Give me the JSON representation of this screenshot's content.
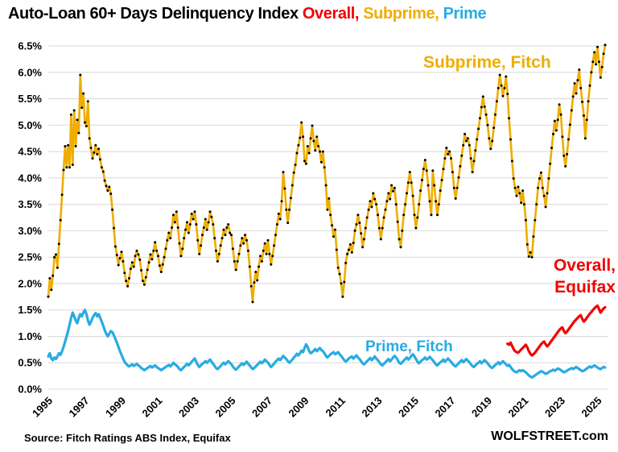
{
  "title": {
    "main": "Auto-Loan 60+ Days Delinquency Index",
    "overall_word": "Overall,",
    "subprime_word": "Subprime,",
    "prime_word": "Prime"
  },
  "footer": {
    "source": "Source: Fitch Ratings ABS Index, Equifax",
    "brand": "WOLFSTREET.com"
  },
  "annotations": {
    "subprime": "Subprime, Fitch",
    "overall_line1": "Overall,",
    "overall_line2": "Equifax",
    "prime": "Prime, Fitch"
  },
  "colors": {
    "subprime": "#EFAD00",
    "prime": "#29ABE2",
    "overall": "#F20000",
    "grid": "#D8D8D8",
    "dot": "#000000",
    "title_text": "#000000"
  },
  "chart_data": {
    "type": "line",
    "title": "Auto-Loan 60+ Days Delinquency Index Overall, Subprime, Prime",
    "xlabel": "",
    "ylabel": "",
    "grid": "horizontal-only",
    "ylim": [
      0,
      6.65
    ],
    "ytick_step": 0.5,
    "ytick_labels": [
      "0.0%",
      "0.5%",
      "1.0%",
      "1.5%",
      "2.0%",
      "2.5%",
      "3.0%",
      "3.5%",
      "4.0%",
      "4.5%",
      "5.0%",
      "5.5%",
      "6.0%",
      "6.5%"
    ],
    "xticks_years": [
      1995,
      1997,
      1999,
      2001,
      2003,
      2005,
      2007,
      2009,
      2011,
      2013,
      2015,
      2017,
      2019,
      2021,
      2023,
      2025
    ],
    "x_start": "1995-01",
    "x_end": "2025-06",
    "x_months_total": 366,
    "series": [
      {
        "id": "subprime",
        "name": "Subprime, Fitch",
        "color": "#EFAD00",
        "width": 2.6,
        "dots": true,
        "start_month_index": 0,
        "values": [
          1.75,
          2.1,
          1.88,
          2.15,
          2.5,
          2.55,
          2.3,
          2.75,
          3.2,
          3.68,
          4.15,
          4.6,
          4.2,
          4.62,
          4.2,
          5.2,
          4.25,
          5.28,
          4.6,
          5.1,
          4.85,
          5.95,
          5.33,
          5.6,
          5.05,
          4.98,
          5.45,
          4.75,
          4.57,
          4.37,
          4.48,
          4.62,
          4.45,
          4.55,
          4.35,
          4.2,
          4.12,
          3.95,
          3.85,
          3.76,
          3.83,
          3.7,
          3.4,
          3.05,
          2.7,
          2.54,
          2.35,
          2.48,
          2.6,
          2.42,
          2.2,
          2.05,
          1.95,
          2.1,
          2.28,
          2.4,
          2.32,
          2.52,
          2.62,
          2.55,
          2.45,
          2.25,
          2.05,
          1.98,
          2.12,
          2.26,
          2.4,
          2.55,
          2.46,
          2.62,
          2.78,
          2.62,
          2.52,
          2.34,
          2.22,
          2.36,
          2.5,
          2.66,
          2.82,
          2.96,
          2.86,
          3.06,
          3.3,
          3.16,
          3.36,
          3.06,
          2.76,
          2.52,
          2.66,
          2.86,
          3.02,
          3.16,
          2.96,
          3.12,
          3.32,
          3.22,
          3.36,
          3.12,
          2.82,
          2.56,
          2.72,
          2.92,
          3.06,
          3.22,
          3.02,
          3.16,
          3.36,
          3.26,
          3.12,
          2.86,
          2.62,
          2.42,
          2.56,
          2.72,
          2.86,
          3.02,
          2.92,
          3.06,
          3.12,
          2.96,
          2.92,
          2.66,
          2.42,
          2.26,
          2.42,
          2.56,
          2.72,
          2.86,
          2.76,
          2.92,
          2.82,
          2.62,
          2.32,
          1.95,
          1.65,
          2.02,
          2.22,
          2.06,
          2.32,
          2.52,
          2.42,
          2.62,
          2.76,
          2.56,
          2.82,
          2.56,
          2.36,
          2.52,
          2.72,
          2.92,
          3.12,
          3.32,
          3.22,
          3.56,
          4.11,
          3.8,
          3.4,
          3.15,
          3.4,
          3.62,
          3.86,
          4.1,
          4.25,
          4.47,
          4.62,
          4.76,
          5.05,
          4.78,
          4.32,
          4.27,
          4.6,
          4.47,
          4.75,
          4.99,
          4.7,
          4.52,
          4.78,
          4.6,
          4.5,
          4.3,
          4.5,
          4.2,
          3.86,
          3.4,
          3.61,
          3.3,
          3.1,
          2.89,
          3.02,
          2.64,
          2.3,
          2.18,
          2.0,
          1.75,
          2.03,
          2.39,
          2.56,
          2.64,
          2.74,
          2.59,
          2.77,
          3.0,
          3.12,
          3.3,
          3.15,
          2.95,
          2.69,
          2.84,
          3.05,
          3.25,
          3.4,
          3.56,
          3.45,
          3.71,
          3.6,
          3.5,
          3.3,
          3.05,
          2.84,
          3.05,
          3.25,
          3.4,
          3.56,
          3.71,
          3.6,
          3.86,
          3.75,
          3.81,
          3.5,
          3.17,
          2.84,
          2.69,
          3.0,
          3.3,
          3.5,
          3.71,
          3.91,
          4.11,
          3.91,
          3.66,
          3.3,
          3.05,
          3.25,
          3.5,
          3.76,
          3.96,
          4.17,
          4.34,
          4.14,
          3.86,
          3.56,
          3.3,
          4.14,
          3.86,
          3.56,
          3.3,
          3.5,
          3.76,
          3.96,
          4.17,
          4.37,
          4.57,
          4.45,
          4.5,
          4.37,
          4.11,
          3.81,
          3.61,
          3.81,
          4.01,
          4.22,
          4.42,
          4.62,
          4.83,
          4.7,
          4.75,
          4.62,
          4.37,
          4.11,
          4.32,
          4.52,
          4.73,
          4.93,
          5.13,
          5.34,
          5.54,
          5.35,
          5.2,
          5.0,
          4.75,
          4.55,
          4.7,
          4.95,
          5.2,
          5.45,
          5.7,
          5.95,
          5.75,
          5.55,
          5.7,
          5.92,
          5.59,
          5.13,
          4.73,
          4.32,
          3.99,
          3.81,
          3.66,
          3.83,
          3.71,
          3.53,
          3.76,
          3.5,
          3.2,
          2.74,
          2.51,
          2.59,
          2.5,
          2.89,
          3.2,
          3.5,
          3.81,
          3.99,
          4.1,
          3.81,
          3.66,
          3.45,
          3.71,
          3.99,
          4.27,
          4.57,
          4.83,
          5.08,
          4.9,
          5.1,
          5.39,
          5.2,
          4.78,
          4.42,
          4.22,
          4.45,
          4.73,
          5.01,
          5.28,
          5.54,
          5.79,
          5.6,
          5.85,
          6.05,
          5.7,
          5.44,
          5.18,
          4.75,
          5.1,
          5.45,
          5.75,
          6.0,
          6.2,
          6.38,
          6.15,
          6.48,
          6.2,
          5.9,
          6.1,
          6.35,
          6.52
        ]
      },
      {
        "id": "prime",
        "name": "Prime, Fitch",
        "color": "#29ABE2",
        "width": 3.2,
        "dots": false,
        "start_month_index": 0,
        "values": [
          0.62,
          0.68,
          0.58,
          0.55,
          0.6,
          0.57,
          0.62,
          0.68,
          0.65,
          0.72,
          0.8,
          0.9,
          1.0,
          1.1,
          1.22,
          1.35,
          1.45,
          1.38,
          1.3,
          1.25,
          1.35,
          1.42,
          1.38,
          1.45,
          1.5,
          1.42,
          1.3,
          1.22,
          1.28,
          1.35,
          1.4,
          1.44,
          1.38,
          1.42,
          1.35,
          1.28,
          1.2,
          1.12,
          1.05,
          1.0,
          1.05,
          1.1,
          1.08,
          1.02,
          0.95,
          0.88,
          0.8,
          0.72,
          0.65,
          0.58,
          0.52,
          0.48,
          0.45,
          0.43,
          0.45,
          0.47,
          0.44,
          0.46,
          0.48,
          0.45,
          0.43,
          0.4,
          0.38,
          0.36,
          0.38,
          0.4,
          0.42,
          0.44,
          0.41,
          0.43,
          0.45,
          0.42,
          0.4,
          0.38,
          0.36,
          0.38,
          0.4,
          0.42,
          0.44,
          0.46,
          0.43,
          0.46,
          0.5,
          0.47,
          0.45,
          0.42,
          0.38,
          0.36,
          0.39,
          0.42,
          0.45,
          0.48,
          0.45,
          0.48,
          0.52,
          0.55,
          0.58,
          0.52,
          0.46,
          0.42,
          0.45,
          0.48,
          0.5,
          0.53,
          0.5,
          0.53,
          0.56,
          0.52,
          0.48,
          0.44,
          0.4,
          0.38,
          0.41,
          0.44,
          0.47,
          0.5,
          0.47,
          0.5,
          0.53,
          0.5,
          0.47,
          0.43,
          0.39,
          0.37,
          0.4,
          0.43,
          0.46,
          0.49,
          0.46,
          0.49,
          0.52,
          0.48,
          0.45,
          0.41,
          0.38,
          0.4,
          0.43,
          0.46,
          0.49,
          0.52,
          0.49,
          0.52,
          0.56,
          0.53,
          0.5,
          0.46,
          0.42,
          0.45,
          0.48,
          0.52,
          0.55,
          0.58,
          0.55,
          0.59,
          0.63,
          0.6,
          0.57,
          0.53,
          0.5,
          0.53,
          0.56,
          0.6,
          0.63,
          0.67,
          0.64,
          0.68,
          0.73,
          0.7,
          0.78,
          0.85,
          0.8,
          0.72,
          0.68,
          0.7,
          0.73,
          0.76,
          0.72,
          0.75,
          0.78,
          0.74,
          0.72,
          0.68,
          0.63,
          0.6,
          0.63,
          0.66,
          0.68,
          0.7,
          0.66,
          0.68,
          0.7,
          0.66,
          0.63,
          0.59,
          0.55,
          0.52,
          0.55,
          0.58,
          0.6,
          0.62,
          0.58,
          0.61,
          0.64,
          0.6,
          0.57,
          0.53,
          0.49,
          0.47,
          0.5,
          0.53,
          0.56,
          0.59,
          0.55,
          0.58,
          0.62,
          0.58,
          0.55,
          0.51,
          0.47,
          0.45,
          0.48,
          0.51,
          0.54,
          0.57,
          0.53,
          0.56,
          0.6,
          0.63,
          0.6,
          0.55,
          0.5,
          0.48,
          0.51,
          0.54,
          0.57,
          0.6,
          0.56,
          0.59,
          0.63,
          0.66,
          0.62,
          0.57,
          0.52,
          0.49,
          0.52,
          0.55,
          0.57,
          0.6,
          0.56,
          0.58,
          0.61,
          0.58,
          0.55,
          0.51,
          0.47,
          0.45,
          0.48,
          0.51,
          0.53,
          0.56,
          0.52,
          0.55,
          0.58,
          0.55,
          0.52,
          0.48,
          0.45,
          0.43,
          0.46,
          0.49,
          0.52,
          0.55,
          0.51,
          0.54,
          0.57,
          0.54,
          0.51,
          0.47,
          0.44,
          0.42,
          0.45,
          0.48,
          0.5,
          0.53,
          0.49,
          0.52,
          0.55,
          0.52,
          0.49,
          0.45,
          0.42,
          0.4,
          0.43,
          0.46,
          0.48,
          0.51,
          0.47,
          0.5,
          0.53,
          0.5,
          0.47,
          0.44,
          0.46,
          0.42,
          0.38,
          0.35,
          0.33,
          0.32,
          0.34,
          0.36,
          0.34,
          0.36,
          0.34,
          0.32,
          0.29,
          0.26,
          0.24,
          0.22,
          0.24,
          0.26,
          0.28,
          0.3,
          0.32,
          0.34,
          0.33,
          0.31,
          0.29,
          0.3,
          0.32,
          0.34,
          0.35,
          0.37,
          0.35,
          0.37,
          0.39,
          0.38,
          0.36,
          0.34,
          0.32,
          0.33,
          0.35,
          0.37,
          0.38,
          0.4,
          0.38,
          0.4,
          0.42,
          0.4,
          0.38,
          0.36,
          0.34,
          0.35,
          0.37,
          0.39,
          0.41,
          0.43,
          0.41,
          0.43,
          0.45,
          0.43,
          0.41,
          0.39,
          0.38,
          0.4,
          0.42,
          0.41
        ]
      },
      {
        "id": "overall",
        "name": "Overall, Equifax",
        "color": "#F20000",
        "width": 3.2,
        "dots": false,
        "start_month_index": 301,
        "values": [
          0.86,
          0.84,
          0.88,
          0.82,
          0.76,
          0.72,
          0.7,
          0.69,
          0.72,
          0.75,
          0.78,
          0.81,
          0.84,
          0.79,
          0.72,
          0.67,
          0.64,
          0.66,
          0.69,
          0.73,
          0.77,
          0.81,
          0.85,
          0.88,
          0.9,
          0.85,
          0.81,
          0.84,
          0.88,
          0.92,
          0.96,
          1.0,
          1.04,
          1.08,
          1.12,
          1.15,
          1.17,
          1.1,
          1.06,
          1.09,
          1.13,
          1.17,
          1.21,
          1.25,
          1.29,
          1.32,
          1.35,
          1.38,
          1.4,
          1.33,
          1.28,
          1.31,
          1.35,
          1.39,
          1.43,
          1.46,
          1.5,
          1.53,
          1.56,
          1.58,
          1.52,
          1.45,
          1.49,
          1.53,
          1.55
        ]
      }
    ],
    "legend_position": "on-chart-annotations"
  }
}
